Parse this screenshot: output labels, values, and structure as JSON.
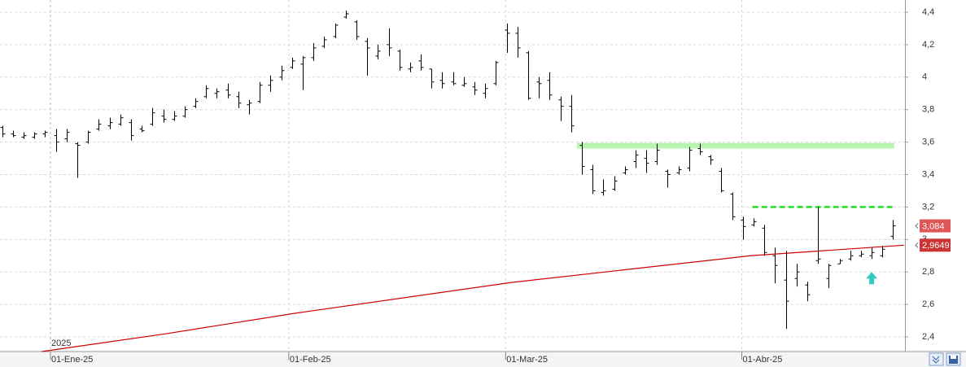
{
  "chart_data": {
    "type": "ohlc",
    "xlim": [
      -0.2,
      84.1
    ],
    "ylim": [
      2.31,
      4.475
    ],
    "yticks": [
      {
        "value": 2.4,
        "label": "2,4"
      },
      {
        "value": 2.6,
        "label": "2,6"
      },
      {
        "value": 2.8,
        "label": "2,8"
      },
      3,
      {
        "value": 3.2,
        "label": "3,2"
      },
      {
        "value": 3.4,
        "label": "3,4"
      },
      {
        "value": 3.6,
        "label": "3,6"
      },
      {
        "value": 3.8,
        "label": "3,8"
      },
      4,
      {
        "value": 4.2,
        "label": "4,2"
      },
      {
        "value": 4.4,
        "label": "4,4"
      }
    ],
    "xticks": [
      {
        "value": 4.5,
        "label": "01-Ene-25"
      },
      {
        "value": 26.7,
        "label": "01-Feb-25"
      },
      {
        "value": 46.9,
        "label": "01-Mar-25"
      },
      {
        "value": 68.9,
        "label": "01-Abr-25"
      }
    ],
    "year_label": "2025",
    "grid": true,
    "color": "#000000",
    "open": [
      3.69,
      3.65,
      3.63,
      3.63,
      3.65,
      3.64,
      3.62,
      3.59,
      3.6,
      3.68,
      3.7,
      3.71,
      3.72,
      3.68,
      3.71,
      3.76,
      3.74,
      3.76,
      3.82,
      3.88,
      3.9,
      3.92,
      3.88,
      3.83,
      3.85,
      3.95,
      4.0,
      4.06,
      4.08,
      4.12,
      4.19,
      4.25,
      4.37,
      4.34,
      4.22,
      4.13,
      4.2,
      4.16,
      4.05,
      4.1,
      4.05,
      3.98,
      3.97,
      3.95,
      3.94,
      3.9,
      3.96,
      4.29,
      4.27,
      4.15,
      3.97,
      3.98,
      3.86,
      3.82,
      3.58,
      3.43,
      3.29,
      3.31,
      3.41,
      3.48,
      3.5,
      3.48,
      3.42,
      3.41,
      3.44,
      3.56,
      3.51,
      3.42,
      3.28,
      3.12,
      3.09,
      3.07,
      2.9,
      2.75,
      2.76,
      2.72,
      2.87,
      2.76,
      2.85,
      2.88,
      2.9,
      2.9,
      2.9,
      3.02
    ],
    "high": [
      3.7,
      3.67,
      3.66,
      3.66,
      3.67,
      3.68,
      3.68,
      3.6,
      3.67,
      3.74,
      3.75,
      3.77,
      3.74,
      3.7,
      3.81,
      3.8,
      3.79,
      3.82,
      3.87,
      3.95,
      3.93,
      3.96,
      3.91,
      3.86,
      3.97,
      4.01,
      4.07,
      4.12,
      4.13,
      4.21,
      4.25,
      4.33,
      4.41,
      4.35,
      4.24,
      4.2,
      4.3,
      4.17,
      4.09,
      4.14,
      4.05,
      4.03,
      4.03,
      4.0,
      3.97,
      3.96,
      4.1,
      4.33,
      4.31,
      4.16,
      4.0,
      4.03,
      3.88,
      3.89,
      3.6,
      3.46,
      3.37,
      3.39,
      3.45,
      3.55,
      3.55,
      3.59,
      3.43,
      3.45,
      3.57,
      3.59,
      3.52,
      3.44,
      3.29,
      3.14,
      3.13,
      3.09,
      2.95,
      2.93,
      2.85,
      2.74,
      3.2,
      2.85,
      2.88,
      2.93,
      2.93,
      2.95,
      2.96,
      3.12
    ],
    "low": [
      3.63,
      3.63,
      3.62,
      3.62,
      3.63,
      3.54,
      3.6,
      3.38,
      3.59,
      3.67,
      3.68,
      3.7,
      3.61,
      3.66,
      3.7,
      3.72,
      3.73,
      3.75,
      3.81,
      3.87,
      3.87,
      3.87,
      3.81,
      3.77,
      3.84,
      3.91,
      3.98,
      4.05,
      3.92,
      4.1,
      4.18,
      4.24,
      4.36,
      4.23,
      4.01,
      4.11,
      4.13,
      4.04,
      4.03,
      4.04,
      3.93,
      3.93,
      3.95,
      3.94,
      3.89,
      3.87,
      3.95,
      4.15,
      4.12,
      3.86,
      3.87,
      3.86,
      3.73,
      3.66,
      3.4,
      3.28,
      3.27,
      3.3,
      3.4,
      3.44,
      3.41,
      3.46,
      3.32,
      3.4,
      3.42,
      3.52,
      3.46,
      3.29,
      3.12,
      3.0,
      3.08,
      2.9,
      2.73,
      2.45,
      2.71,
      2.62,
      2.85,
      2.7,
      2.85,
      2.87,
      2.89,
      2.88,
      2.89,
      3.0
    ],
    "close": [
      3.65,
      3.64,
      3.64,
      3.65,
      3.66,
      3.6,
      3.66,
      3.58,
      3.66,
      3.71,
      3.72,
      3.75,
      3.64,
      3.67,
      3.78,
      3.74,
      3.76,
      3.8,
      3.85,
      3.93,
      3.91,
      3.89,
      3.84,
      3.84,
      3.95,
      3.98,
      4.04,
      4.1,
      4.12,
      4.18,
      4.23,
      4.32,
      4.39,
      4.25,
      4.18,
      4.16,
      4.18,
      4.06,
      4.06,
      4.06,
      3.97,
      3.96,
      3.96,
      3.96,
      3.92,
      3.93,
      4.09,
      4.27,
      4.18,
      3.87,
      3.96,
      3.89,
      3.82,
      3.7,
      3.45,
      3.3,
      3.3,
      3.36,
      3.43,
      3.52,
      3.47,
      3.55,
      3.4,
      3.43,
      3.55,
      3.54,
      3.49,
      3.3,
      3.14,
      3.08,
      3.11,
      2.92,
      2.84,
      2.62,
      2.8,
      2.66,
      2.88,
      2.84,
      2.87,
      2.9,
      2.91,
      2.92,
      2.94,
      3.084
    ],
    "last_value": 3.084,
    "last_value_label": "3,084",
    "moving_average": {
      "color": "#cc0000",
      "x": [
        3.7,
        15.3,
        27.2,
        47.5,
        69.7,
        84
      ],
      "values": [
        2.31,
        2.42,
        2.545,
        2.736,
        2.9,
        2.9649
      ],
      "last_value": 2.9649,
      "last_value_label": "2,9649"
    },
    "resistance_band": {
      "color": "#b8f5b0",
      "x": [
        53.55,
        83.1
      ],
      "y": [
        3.56,
        3.595
      ]
    },
    "resistance_line": {
      "color": "#22dd22",
      "x": [
        69.9,
        83.1
      ],
      "value": 3.2
    },
    "signal_arrow": {
      "color": "#33c9c0",
      "x": 81,
      "value": 2.76
    }
  }
}
